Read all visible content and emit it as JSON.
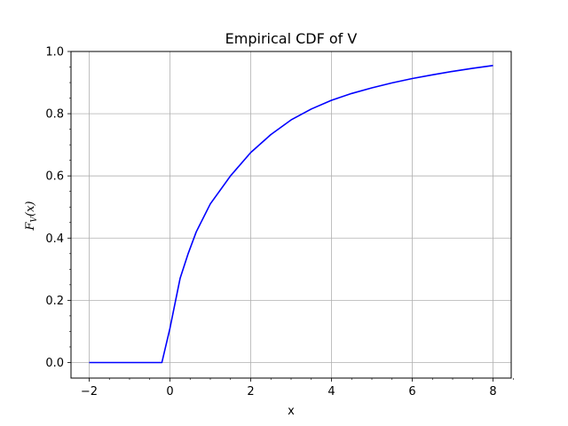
{
  "chart_data": {
    "type": "line",
    "title": "Empirical CDF of V",
    "xlabel": "x",
    "ylabel_main": "F",
    "ylabel_sub": "V",
    "ylabel_arg": "(x)",
    "xlim": [
      -2.45,
      8.45
    ],
    "ylim": [
      -0.05,
      1.0
    ],
    "xticks": [
      -2,
      0,
      2,
      4,
      6,
      8
    ],
    "xtick_labels": [
      "−2",
      "0",
      "2",
      "4",
      "6",
      "8"
    ],
    "yticks": [
      0.0,
      0.2,
      0.4,
      0.6,
      0.8,
      1.0
    ],
    "ytick_labels": [
      "0.0",
      "0.2",
      "0.4",
      "0.6",
      "0.8",
      "1.0"
    ],
    "x_minor_ticks": [
      -1.5,
      -1.0,
      -0.5,
      0.5,
      1.0,
      1.5,
      2.5,
      3.0,
      3.5,
      4.5,
      5.0,
      5.5,
      6.5,
      7.0,
      7.5,
      8.5
    ],
    "y_minor_ticks": [
      0.05,
      0.1,
      0.15,
      0.25,
      0.3,
      0.35,
      0.45,
      0.5,
      0.55,
      0.65,
      0.7,
      0.75,
      0.85,
      0.9,
      0.95
    ],
    "grid": true,
    "series": [
      {
        "color": "#0000ff",
        "x": [
          -2.0,
          -0.2,
          0.0,
          0.25,
          0.45,
          0.65,
          1.0,
          1.5,
          2.0,
          2.5,
          3.0,
          3.5,
          4.0,
          4.5,
          5.0,
          5.5,
          6.0,
          6.5,
          7.0,
          7.5,
          8.0
        ],
        "y": [
          0.0,
          0.0,
          0.11,
          0.27,
          0.35,
          0.42,
          0.51,
          0.6,
          0.675,
          0.733,
          0.78,
          0.815,
          0.843,
          0.865,
          0.883,
          0.899,
          0.913,
          0.925,
          0.936,
          0.946,
          0.955
        ]
      }
    ]
  }
}
